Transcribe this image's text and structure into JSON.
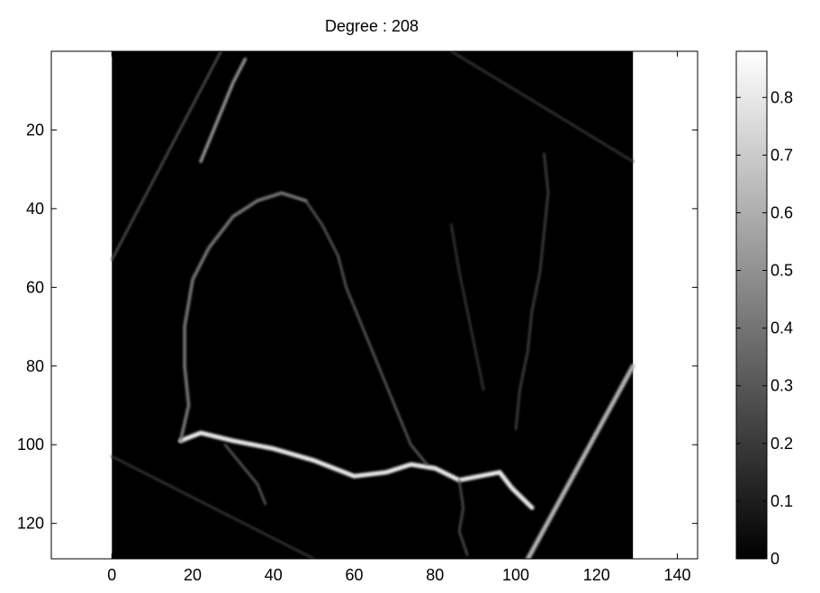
{
  "chart_data": {
    "type": "heatmap",
    "title": "Degree : 208",
    "xlabel": "",
    "ylabel": "",
    "xlim": [
      -15,
      145
    ],
    "ylim": [
      0,
      129
    ],
    "y_reversed": true,
    "grid": false,
    "image_extent_x": [
      0,
      129
    ],
    "x_ticks": [
      0,
      20,
      40,
      60,
      80,
      100,
      120,
      140
    ],
    "y_ticks": [
      20,
      40,
      60,
      80,
      100,
      120
    ],
    "colormap": "gray",
    "colorbar": {
      "range": [
        0,
        0.88
      ],
      "ticks": [
        0,
        0.1,
        0.2,
        0.3,
        0.4,
        0.5,
        0.6,
        0.7,
        0.8
      ],
      "tick_labels": [
        "0",
        "0.1",
        "0.2",
        "0.3",
        "0.4",
        "0.5",
        "0.6",
        "0.7",
        "0.8"
      ]
    },
    "bright_paths": [
      {
        "name": "lower-vessel",
        "intensity": 0.85,
        "points": [
          [
            17,
            99
          ],
          [
            22,
            97
          ],
          [
            30,
            99
          ],
          [
            40,
            101
          ],
          [
            50,
            104
          ],
          [
            60,
            108
          ],
          [
            68,
            107
          ],
          [
            74,
            105
          ],
          [
            80,
            106
          ],
          [
            86,
            109
          ],
          [
            91,
            108
          ],
          [
            96,
            107
          ],
          [
            99,
            111
          ],
          [
            104,
            116
          ]
        ]
      },
      {
        "name": "left-vessel",
        "intensity": 0.45,
        "points": [
          [
            17,
            99
          ],
          [
            19,
            90
          ],
          [
            18,
            80
          ],
          [
            18,
            70
          ],
          [
            20,
            58
          ],
          [
            24,
            50
          ],
          [
            30,
            42
          ],
          [
            36,
            38
          ],
          [
            42,
            36
          ],
          [
            48,
            38
          ]
        ]
      },
      {
        "name": "upper-vessel",
        "intensity": 0.35,
        "points": [
          [
            48,
            38
          ],
          [
            52,
            44
          ],
          [
            56,
            52
          ],
          [
            58,
            60
          ],
          [
            62,
            70
          ],
          [
            66,
            80
          ],
          [
            70,
            90
          ],
          [
            74,
            100
          ],
          [
            78,
            105
          ]
        ]
      },
      {
        "name": "top-left-streak",
        "intensity": 0.55,
        "points": [
          [
            22,
            28
          ],
          [
            26,
            18
          ],
          [
            30,
            8
          ],
          [
            33,
            2
          ]
        ]
      },
      {
        "name": "lower-branch",
        "intensity": 0.35,
        "points": [
          [
            28,
            100
          ],
          [
            32,
            105
          ],
          [
            36,
            110
          ],
          [
            38,
            115
          ]
        ]
      },
      {
        "name": "bottom-branch",
        "intensity": 0.3,
        "points": [
          [
            86,
            109
          ],
          [
            87,
            116
          ],
          [
            86,
            122
          ],
          [
            88,
            128
          ]
        ]
      },
      {
        "name": "right-vessel",
        "intensity": 0.25,
        "points": [
          [
            107,
            26
          ],
          [
            108,
            36
          ],
          [
            107,
            46
          ],
          [
            106,
            56
          ],
          [
            104,
            66
          ],
          [
            103,
            76
          ],
          [
            101,
            86
          ],
          [
            100,
            96
          ]
        ]
      },
      {
        "name": "mid-right-vessel",
        "intensity": 0.2,
        "points": [
          [
            84,
            44
          ],
          [
            86,
            56
          ],
          [
            88,
            66
          ],
          [
            90,
            76
          ],
          [
            92,
            86
          ]
        ]
      },
      {
        "name": "right-edge-line",
        "intensity": 0.65,
        "points": [
          [
            103,
            129
          ],
          [
            129,
            80
          ]
        ]
      },
      {
        "name": "top-left-edge-line",
        "intensity": 0.3,
        "points": [
          [
            0,
            53
          ],
          [
            27,
            0
          ]
        ]
      },
      {
        "name": "bottom-edge-line",
        "intensity": 0.2,
        "points": [
          [
            0,
            103
          ],
          [
            50,
            129
          ]
        ]
      },
      {
        "name": "top-right-edge-line",
        "intensity": 0.2,
        "points": [
          [
            84,
            0
          ],
          [
            129,
            28
          ]
        ]
      }
    ]
  }
}
